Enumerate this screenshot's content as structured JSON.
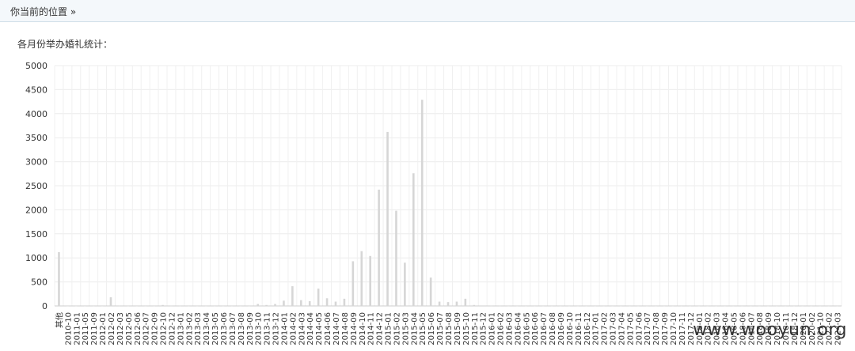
{
  "breadcrumb": {
    "label": "你当前的位置 »"
  },
  "chart_title": "各月份举办婚礼统计：",
  "watermark": "www.wooyun.org",
  "chart_data": {
    "type": "bar",
    "title": "各月份举办婚礼统计：",
    "xlabel": "",
    "ylabel": "",
    "ylim": [
      0,
      5000
    ],
    "yticks": [
      0,
      500,
      1000,
      1500,
      2000,
      2500,
      3000,
      3500,
      4000,
      4500,
      5000
    ],
    "grid": true,
    "categories": [
      "其他",
      "2010-10",
      "2011-01",
      "2011-05",
      "2011-09",
      "2012-01",
      "2012-02",
      "2012-03",
      "2012-05",
      "2012-06",
      "2012-07",
      "2012-09",
      "2012-10",
      "2012-12",
      "2013-01",
      "2013-02",
      "2013-03",
      "2013-04",
      "2013-05",
      "2013-06",
      "2013-07",
      "2013-08",
      "2013-09",
      "2013-10",
      "2013-11",
      "2013-12",
      "2014-01",
      "2014-02",
      "2014-03",
      "2014-04",
      "2014-05",
      "2014-06",
      "2014-07",
      "2014-08",
      "2014-09",
      "2014-10",
      "2014-11",
      "2014-12",
      "2015-01",
      "2015-02",
      "2015-03",
      "2015-04",
      "2015-05",
      "2015-06",
      "2015-07",
      "2015-08",
      "2015-09",
      "2015-10",
      "2015-11",
      "2015-12",
      "2016-01",
      "2016-02",
      "2016-03",
      "2016-04",
      "2016-05",
      "2016-06",
      "2016-07",
      "2016-08",
      "2016-09",
      "2016-10",
      "2016-11",
      "2016-12",
      "2017-01",
      "2017-02",
      "2017-03",
      "2017-04",
      "2017-05",
      "2017-06",
      "2017-07",
      "2017-08",
      "2017-09",
      "2017-10",
      "2017-11",
      "2017-12",
      "2018-01",
      "2018-02",
      "2018-03",
      "2018-04",
      "2018-05",
      "2018-06",
      "2018-07",
      "2018-08",
      "2018-09",
      "2018-10",
      "2018-11",
      "2018-12",
      "2020-01",
      "2020-02",
      "2021-10",
      "2022-02",
      "2024-03"
    ],
    "values": [
      1120,
      2,
      3,
      2,
      3,
      2,
      180,
      5,
      3,
      2,
      3,
      3,
      20,
      5,
      4,
      3,
      3,
      3,
      3,
      3,
      3,
      3,
      3,
      40,
      20,
      40,
      110,
      410,
      120,
      100,
      360,
      160,
      90,
      150,
      930,
      1140,
      1040,
      2420,
      3620,
      1980,
      900,
      2760,
      4290,
      590,
      90,
      80,
      90,
      150,
      20,
      10,
      5,
      5,
      3,
      3,
      3,
      3,
      3,
      3,
      3,
      3,
      3,
      3,
      3,
      3,
      3,
      3,
      3,
      3,
      3,
      3,
      3,
      3,
      3,
      3,
      3,
      3,
      3,
      3,
      3,
      3,
      3,
      3,
      3,
      3,
      3,
      3,
      3,
      3,
      3,
      3,
      3
    ]
  }
}
